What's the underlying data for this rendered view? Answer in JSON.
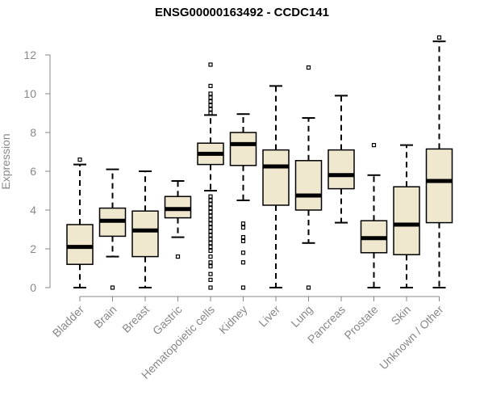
{
  "chart_data": {
    "type": "box",
    "title": "ENSG00000163492 - CCDC141",
    "xlabel": "",
    "ylabel": "Expression",
    "ylim": [
      0,
      12.5
    ],
    "yticks": [
      0,
      2,
      4,
      6,
      8,
      10,
      12
    ],
    "grid": false,
    "box_color": "#efe8cf",
    "categories": [
      "Bladder",
      "Brain",
      "Breast",
      "Gastric",
      "Hematopoietic cells",
      "Kidney",
      "Liver",
      "Lung",
      "Pancreas",
      "Prostate",
      "Skin",
      "Unknown / Other"
    ],
    "boxes": [
      {
        "category": "Bladder",
        "min": 0.0,
        "q1": 1.2,
        "median": 2.1,
        "q3": 3.25,
        "max": 6.35,
        "outliers": [
          6.6
        ]
      },
      {
        "category": "Brain",
        "min": 1.6,
        "q1": 2.65,
        "median": 3.45,
        "q3": 4.1,
        "max": 6.1,
        "outliers": [
          0.0
        ]
      },
      {
        "category": "Breast",
        "min": 0.0,
        "q1": 1.6,
        "median": 2.95,
        "q3": 3.95,
        "max": 6.0,
        "outliers": []
      },
      {
        "category": "Gastric",
        "min": 2.6,
        "q1": 3.6,
        "median": 4.05,
        "q3": 4.7,
        "max": 5.5,
        "outliers": [
          1.6
        ]
      },
      {
        "category": "Hematopoietic cells",
        "min": 5.0,
        "q1": 6.35,
        "median": 6.9,
        "q3": 7.45,
        "max": 8.9,
        "outliers": [
          11.5,
          10.4,
          10.0,
          9.8,
          9.6,
          9.4,
          9.2,
          9.0,
          4.7,
          4.5,
          4.3,
          4.1,
          3.9,
          3.7,
          3.5,
          3.3,
          3.1,
          2.9,
          2.7,
          2.5,
          2.3,
          2.1,
          1.9,
          1.6,
          1.3,
          1.1,
          0.7,
          0.4,
          0.0
        ]
      },
      {
        "category": "Kidney",
        "min": 4.5,
        "q1": 6.3,
        "median": 7.4,
        "q3": 8.0,
        "max": 8.95,
        "outliers": [
          3.3,
          3.1,
          2.6,
          2.4,
          1.8,
          1.3,
          0.0
        ]
      },
      {
        "category": "Liver",
        "min": 0.0,
        "q1": 4.25,
        "median": 6.25,
        "q3": 7.1,
        "max": 10.4,
        "outliers": []
      },
      {
        "category": "Lung",
        "min": 2.3,
        "q1": 4.0,
        "median": 4.75,
        "q3": 6.55,
        "max": 8.75,
        "outliers": [
          11.35,
          0.0
        ]
      },
      {
        "category": "Pancreas",
        "min": 3.35,
        "q1": 5.1,
        "median": 5.8,
        "q3": 7.1,
        "max": 9.9,
        "outliers": []
      },
      {
        "category": "Prostate",
        "min": 0.0,
        "q1": 1.8,
        "median": 2.55,
        "q3": 3.45,
        "max": 5.8,
        "outliers": [
          7.35
        ]
      },
      {
        "category": "Skin",
        "min": 0.0,
        "q1": 1.7,
        "median": 3.25,
        "q3": 5.2,
        "max": 7.35,
        "outliers": []
      },
      {
        "category": "Unknown / Other",
        "min": 0.0,
        "q1": 3.35,
        "median": 5.5,
        "q3": 7.15,
        "max": 12.7,
        "outliers": [
          12.9
        ]
      }
    ]
  }
}
